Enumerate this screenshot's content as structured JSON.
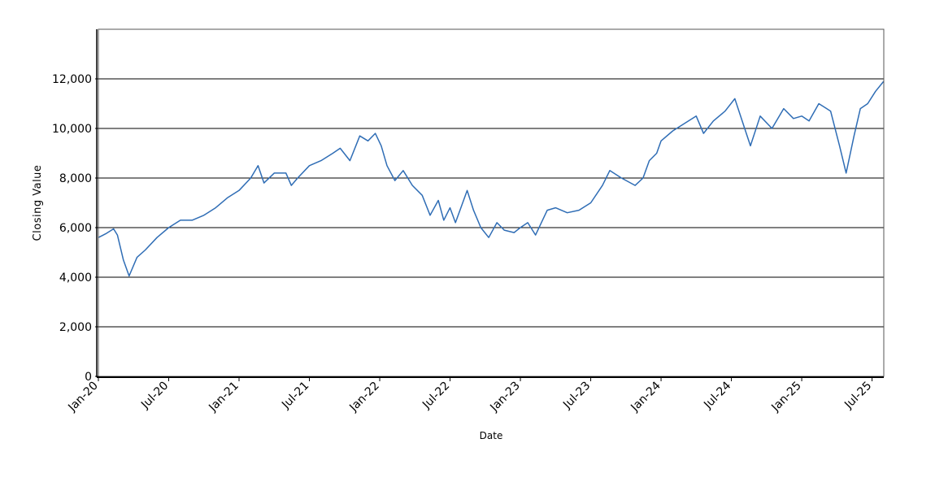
{
  "chart_data": {
    "type": "line",
    "title": "",
    "xlabel": "Date",
    "ylabel": "Closing Value",
    "xlim": [
      "2020-01",
      "2025-08"
    ],
    "ylim": [
      0,
      14000
    ],
    "y_ticks": [
      0,
      2000,
      4000,
      6000,
      8000,
      10000,
      12000
    ],
    "y_tick_labels": [
      "0",
      "2,000",
      "4,000",
      "6,000",
      "8,000",
      "10,000",
      "12,000"
    ],
    "x_ticks": [
      "2020-01",
      "2020-07",
      "2021-01",
      "2021-07",
      "2022-01",
      "2022-07",
      "2023-01",
      "2023-07",
      "2024-01",
      "2024-07",
      "2025-01",
      "2025-07"
    ],
    "x_tick_labels": [
      "Jan-20",
      "Jul-20",
      "Jan-21",
      "Jul-21",
      "Jan-22",
      "Jul-22",
      "Jan-23",
      "Jul-23",
      "Jan-24",
      "Jul-24",
      "Jan-25",
      "Jul-25"
    ],
    "grid": "horizontal",
    "legend": "none",
    "line_color": "#2f6db5",
    "series": [
      {
        "x": [
          "2020-01-01",
          "2020-01-20",
          "2020-02-10",
          "2020-02-20",
          "2020-03-05",
          "2020-03-20",
          "2020-04-10",
          "2020-05-01",
          "2020-06-01",
          "2020-07-01",
          "2020-08-01",
          "2020-09-01",
          "2020-10-01",
          "2020-11-01",
          "2020-12-01",
          "2021-01-01",
          "2021-02-01",
          "2021-02-20",
          "2021-03-05",
          "2021-04-01",
          "2021-05-01",
          "2021-05-15",
          "2021-06-01",
          "2021-07-01",
          "2021-08-01",
          "2021-09-01",
          "2021-09-20",
          "2021-10-15",
          "2021-11-10",
          "2021-12-01",
          "2021-12-20",
          "2022-01-05",
          "2022-01-20",
          "2022-02-10",
          "2022-03-01",
          "2022-03-25",
          "2022-04-20",
          "2022-05-10",
          "2022-06-01",
          "2022-06-15",
          "2022-07-01",
          "2022-07-15",
          "2022-08-15",
          "2022-09-01",
          "2022-09-20",
          "2022-10-10",
          "2022-11-01",
          "2022-11-20",
          "2022-12-15",
          "2023-01-01",
          "2023-01-20",
          "2023-02-10",
          "2023-03-10",
          "2023-04-01",
          "2023-05-01",
          "2023-06-01",
          "2023-07-01",
          "2023-08-01",
          "2023-08-20",
          "2023-09-20",
          "2023-10-25",
          "2023-11-15",
          "2023-12-01",
          "2023-12-20",
          "2024-01-01",
          "2024-02-01",
          "2024-03-01",
          "2024-04-01",
          "2024-04-20",
          "2024-05-15",
          "2024-06-15",
          "2024-07-10",
          "2024-08-05",
          "2024-08-20",
          "2024-09-15",
          "2024-10-15",
          "2024-11-15",
          "2024-12-10",
          "2025-01-01",
          "2025-01-20",
          "2025-02-15",
          "2025-03-15",
          "2025-04-08",
          "2025-04-25",
          "2025-05-15",
          "2025-06-01",
          "2025-06-20",
          "2025-07-10",
          "2025-07-31"
        ],
        "y": [
          5600,
          5750,
          5950,
          5700,
          4700,
          4050,
          4800,
          5100,
          5600,
          6000,
          6300,
          6300,
          6500,
          6800,
          7200,
          7500,
          8000,
          8500,
          7800,
          8200,
          8200,
          7700,
          8000,
          8500,
          8700,
          9000,
          9200,
          8700,
          9700,
          9500,
          9800,
          9300,
          8500,
          7900,
          8300,
          7700,
          7300,
          6500,
          7100,
          6300,
          6800,
          6200,
          7500,
          6700,
          6000,
          5600,
          6200,
          5900,
          5800,
          6000,
          6200,
          5700,
          6700,
          6800,
          6600,
          6700,
          7000,
          7700,
          8300,
          8000,
          7700,
          8000,
          8700,
          9000,
          9500,
          9900,
          10200,
          10500,
          9800,
          10300,
          10700,
          11200,
          10000,
          9300,
          10500,
          10000,
          10800,
          10400,
          10500,
          10300,
          11000,
          10700,
          9300,
          8200,
          9700,
          10800,
          11000,
          11500,
          11900
        ]
      }
    ]
  }
}
